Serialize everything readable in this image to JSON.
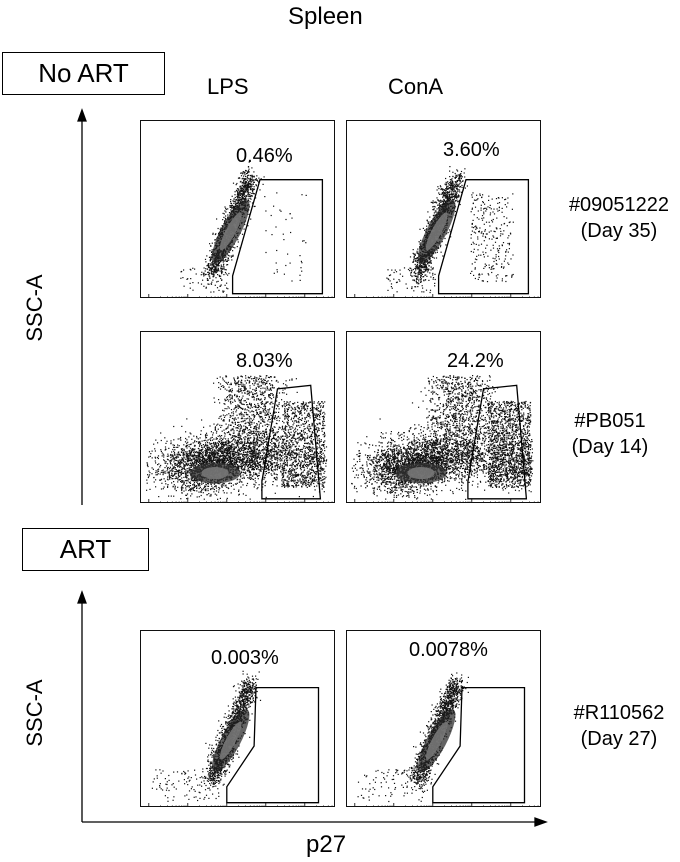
{
  "title": "Spleen",
  "groups": [
    {
      "label": "No ART",
      "y_axis": "SSC-A"
    },
    {
      "label": "ART",
      "y_axis": "SSC-A"
    }
  ],
  "columns": [
    "LPS",
    "ConA"
  ],
  "x_axis": "p27",
  "rows": [
    {
      "id": "#09051222",
      "day": "(Day 35)",
      "percents": [
        "0.46%",
        "3.60%"
      ]
    },
    {
      "id": "#PB051",
      "day": "(Day 14)",
      "percents": [
        "8.03%",
        "24.2%"
      ]
    },
    {
      "id": "#R110562",
      "day": "(Day 27)",
      "percents": [
        "0.003%",
        "0.0078%"
      ]
    }
  ],
  "colors": {
    "line": "#000000",
    "dot": "#111111",
    "core": "#555555",
    "background": "#ffffff"
  }
}
